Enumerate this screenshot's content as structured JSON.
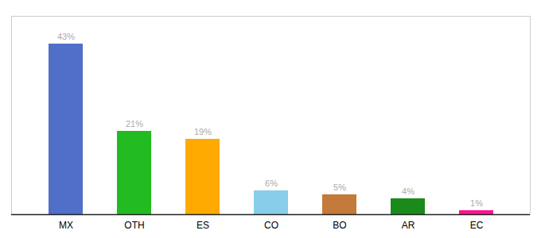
{
  "chart_data": {
    "type": "bar",
    "categories": [
      "MX",
      "OTH",
      "ES",
      "CO",
      "BO",
      "AR",
      "EC"
    ],
    "values": [
      43,
      21,
      19,
      6,
      5,
      4,
      1
    ],
    "colors": [
      "#4f6fc8",
      "#22bb22",
      "#ffaa00",
      "#87ceeb",
      "#c47a3a",
      "#1a8a1a",
      "#ff1493"
    ],
    "ylim": [
      0,
      50
    ],
    "data_labels": true,
    "value_labels": [
      "43%",
      "21%",
      "19%",
      "6%",
      "5%",
      "4%",
      "1%"
    ],
    "tick_labels": "x",
    "grid": false
  }
}
